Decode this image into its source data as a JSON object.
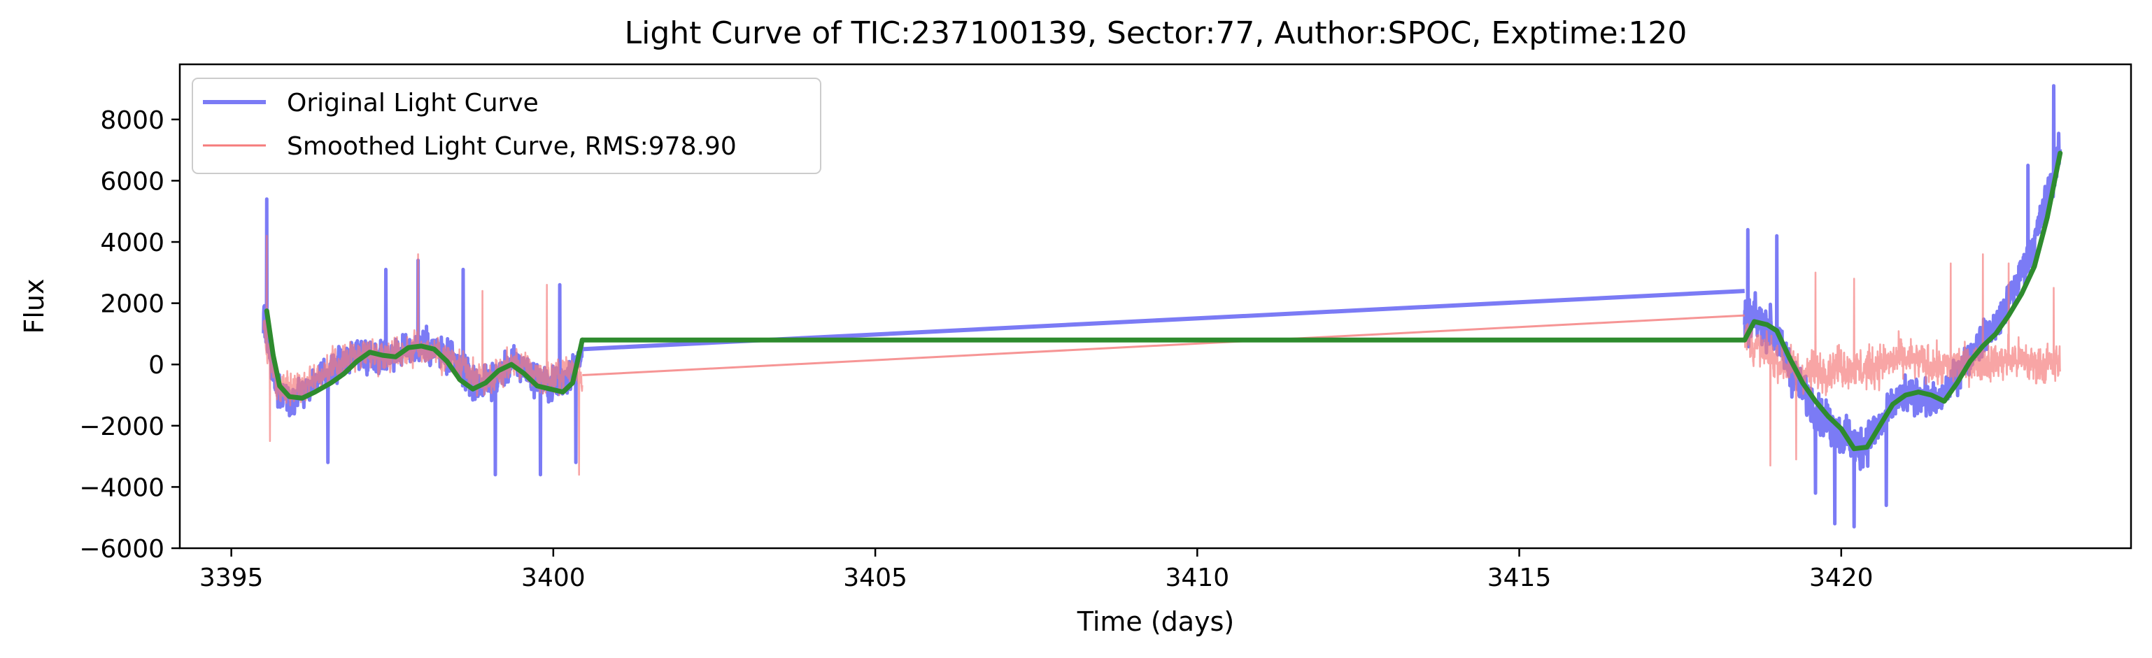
{
  "chart_data": {
    "type": "line",
    "title": "Light Curve of TIC:237100139, Sector:77, Author:SPOC, Exptime:120",
    "xlabel": "Time (days)",
    "ylabel": "Flux",
    "xlim": [
      3394.2,
      3424.5
    ],
    "ylim": [
      -6000,
      9800
    ],
    "x_ticks": [
      3395,
      3400,
      3405,
      3410,
      3415,
      3420
    ],
    "y_ticks": [
      -6000,
      -4000,
      -2000,
      0,
      2000,
      4000,
      6000,
      8000
    ],
    "grid": false,
    "legend_position": "top-left",
    "series": [
      {
        "name": "Original Light Curve",
        "color": "#7b7bf5",
        "style": "noisy",
        "segments": [
          {
            "x": [
              3395.5,
              3395.7,
              3395.9,
              3396.2,
              3396.5,
              3396.8,
              3397.0,
              3397.3,
              3397.6,
              3397.9,
              3398.2,
              3398.5,
              3398.8,
              3399.1,
              3399.4,
              3399.7,
              3400.0,
              3400.3,
              3400.45
            ],
            "y": [
              1600,
              -900,
              -1100,
              -700,
              -300,
              200,
              400,
              300,
              400,
              600,
              500,
              0,
              -700,
              -500,
              100,
              -400,
              -700,
              -200,
              500
            ],
            "amplitude": [
              2300,
              1800,
              1700,
              1600,
              1600,
              1700,
              1800,
              1700,
              1700,
              1800,
              1800,
              1800,
              1800,
              1700,
              1700,
              1800,
              1900,
              1900,
              1200
            ],
            "spikes": [
              [
                3395.55,
                5400
              ],
              [
                3396.5,
                -3200
              ],
              [
                3397.4,
                3100
              ],
              [
                3397.9,
                3400
              ],
              [
                3398.6,
                3100
              ],
              [
                3399.1,
                -3600
              ],
              [
                3399.8,
                -3600
              ],
              [
                3400.1,
                2600
              ],
              [
                3400.35,
                -3200
              ]
            ]
          },
          {
            "x": [
              3418.5,
              3418.7,
              3418.9,
              3419.1,
              3419.4,
              3419.7,
              3420.0,
              3420.3,
              3420.6,
              3420.9,
              3421.2,
              3421.5,
              3421.8,
              3422.1,
              3422.4,
              3422.7,
              3423.0,
              3423.4
            ],
            "y": [
              1400,
              1400,
              1200,
              300,
              -900,
              -1700,
              -2300,
              -2700,
              -2000,
              -1100,
              -1000,
              -1300,
              -300,
              600,
              1300,
              2500,
              4000,
              6900
            ],
            "amplitude": [
              2600,
              2300,
              2300,
              2200,
              2000,
              2100,
              2200,
              2300,
              2100,
              1800,
              1800,
              1800,
              1800,
              1700,
              1800,
              1900,
              2000,
              2000
            ],
            "spikes": [
              [
                3418.55,
                4400
              ],
              [
                3419.0,
                4200
              ],
              [
                3419.6,
                -4200
              ],
              [
                3419.9,
                -5200
              ],
              [
                3420.2,
                -5300
              ],
              [
                3420.7,
                -4600
              ],
              [
                3423.3,
                9100
              ],
              [
                3422.9,
                6500
              ]
            ]
          }
        ],
        "bridge": [
          [
            3400.45,
            500
          ],
          [
            3418.5,
            2400
          ]
        ]
      },
      {
        "name": "Smoothed Light Curve, RMS:978.90",
        "color": "#f57b7b",
        "style": "noisy",
        "segments": [
          {
            "x": [
              3395.5,
              3395.7,
              3395.9,
              3396.2,
              3396.5,
              3396.8,
              3397.0,
              3397.3,
              3397.6,
              3397.9,
              3398.2,
              3398.5,
              3398.8,
              3399.1,
              3399.4,
              3399.7,
              3400.0,
              3400.3,
              3400.45
            ],
            "y": [
              1200,
              -700,
              -900,
              -500,
              -200,
              200,
              400,
              300,
              400,
              500,
              400,
              0,
              -500,
              -400,
              100,
              -300,
              -500,
              -100,
              -400
            ],
            "amplitude": [
              1800,
              1700,
              1700,
              1600,
              1600,
              1600,
              1700,
              1600,
              1700,
              1700,
              1700,
              1700,
              1700,
              1600,
              1600,
              1700,
              1800,
              1800,
              1700
            ],
            "spikes": [
              [
                3395.55,
                4200
              ],
              [
                3395.6,
                -2500
              ],
              [
                3397.9,
                3600
              ],
              [
                3398.9,
                2400
              ],
              [
                3400.4,
                -3600
              ],
              [
                3399.9,
                2600
              ]
            ]
          },
          {
            "x": [
              3418.5,
              3418.7,
              3418.9,
              3419.1,
              3419.4,
              3419.7,
              3420.0,
              3420.3,
              3420.6,
              3420.9,
              3421.2,
              3421.5,
              3421.8,
              3422.1,
              3422.4,
              3422.7,
              3423.0,
              3423.4
            ],
            "y": [
              900,
              500,
              300,
              0,
              -300,
              -200,
              0,
              -200,
              0,
              200,
              100,
              -100,
              0,
              100,
              100,
              200,
              0,
              0
            ],
            "amplitude": [
              2100,
              2000,
              2000,
              2000,
              2100,
              2100,
              2200,
              2200,
              2200,
              2100,
              2100,
              2100,
              2100,
              2000,
              2000,
              2100,
              2200,
              2000
            ],
            "spikes": [
              [
                3418.9,
                -3300
              ],
              [
                3419.6,
                3000
              ],
              [
                3420.2,
                2800
              ],
              [
                3421.7,
                3300
              ],
              [
                3422.2,
                3600
              ],
              [
                3422.6,
                3300
              ],
              [
                3423.3,
                2500
              ],
              [
                3419.3,
                -3100
              ]
            ]
          }
        ],
        "bridge": [
          [
            3400.45,
            -350
          ],
          [
            3418.5,
            1600
          ]
        ]
      },
      {
        "name": "",
        "color": "#2e8b2e",
        "style": "smooth",
        "segments": [
          {
            "x": [
              3395.55,
              3395.65,
              3395.75,
              3395.9,
              3396.1,
              3396.3,
              3396.55,
              3396.75,
              3396.95,
              3397.15,
              3397.35,
              3397.55,
              3397.75,
              3397.95,
              3398.15,
              3398.35,
              3398.55,
              3398.75,
              3398.95,
              3399.15,
              3399.35,
              3399.55,
              3399.75,
              3399.95,
              3400.15,
              3400.3,
              3400.45
            ],
            "y": [
              1750,
              300,
              -700,
              -1050,
              -1100,
              -900,
              -600,
              -300,
              100,
              400,
              300,
              250,
              550,
              600,
              500,
              100,
              -500,
              -800,
              -600,
              -200,
              0,
              -300,
              -700,
              -800,
              -900,
              -600,
              800
            ]
          },
          {
            "x": [
              3400.45,
              3418.5
            ],
            "y": [
              800,
              800
            ]
          },
          {
            "x": [
              3418.5,
              3418.65,
              3418.85,
              3419.0,
              3419.2,
              3419.4,
              3419.6,
              3419.8,
              3420.0,
              3420.2,
              3420.4,
              3420.6,
              3420.8,
              3421.0,
              3421.2,
              3421.4,
              3421.6,
              3421.8,
              3422.0,
              3422.2,
              3422.4,
              3422.6,
              3422.8,
              3423.0,
              3423.2,
              3423.4
            ],
            "y": [
              800,
              1400,
              1300,
              1100,
              200,
              -600,
              -1200,
              -1700,
              -2100,
              -2750,
              -2700,
              -2000,
              -1300,
              -1000,
              -900,
              -1000,
              -1200,
              -600,
              100,
              600,
              1000,
              1600,
              2300,
              3200,
              4800,
              6900
            ]
          }
        ]
      }
    ]
  }
}
